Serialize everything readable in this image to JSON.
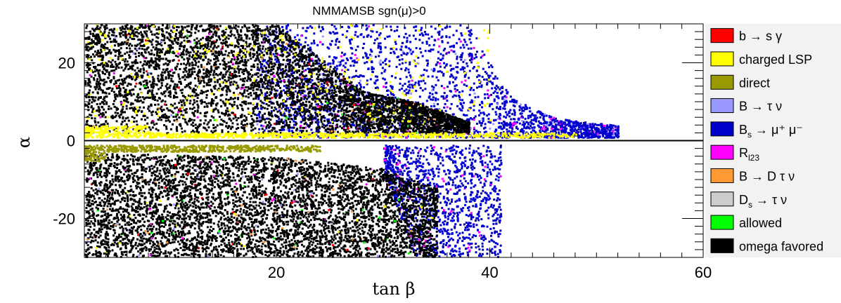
{
  "chart_data": {
    "type": "scatter",
    "title": "NMMAMSB    sgn(μ)>0",
    "xlabel": "tan β",
    "ylabel": "α",
    "xlim": [
      2,
      60
    ],
    "ylim": [
      -30,
      30
    ],
    "x_ticks": [
      20,
      40,
      60
    ],
    "y_ticks": [
      20,
      0,
      -20
    ],
    "legend_position": "right",
    "legend": [
      {
        "label": "b → s γ",
        "color": "#ff0000"
      },
      {
        "label": "charged LSP",
        "color": "#ffff00"
      },
      {
        "label": "direct",
        "color": "#999900"
      },
      {
        "label": "B → τ ν",
        "color": "#9999ff"
      },
      {
        "label": "B_s → μ⁺ μ⁻",
        "color": "#0000cc"
      },
      {
        "label": "R_l23",
        "color": "#ff00ff"
      },
      {
        "label": "B → D τ ν",
        "color": "#ff9933"
      },
      {
        "label": "D_s → τ ν",
        "color": "#cccccc"
      },
      {
        "label": "allowed",
        "color": "#00ff00"
      },
      {
        "label": "omega favored",
        "color": "#000000"
      }
    ],
    "regions": [
      {
        "name": "omega favored",
        "color": "#000000",
        "upper_boundary": [
          [
            2,
            30
          ],
          [
            20,
            30
          ],
          [
            28,
            13
          ],
          [
            33,
            10
          ],
          [
            36,
            7
          ],
          [
            40,
            3
          ]
        ],
        "lower_boundary": [
          [
            2,
            -30
          ],
          [
            34,
            -30
          ],
          [
            35,
            -25
          ],
          [
            34,
            -15
          ],
          [
            30,
            -8
          ],
          [
            20,
            -5
          ],
          [
            2,
            -3
          ]
        ]
      },
      {
        "name": "B_s → μ⁺ μ⁻",
        "color": "#0000cc",
        "upper_boundary": [
          [
            18,
            30
          ],
          [
            38,
            30
          ],
          [
            40,
            20
          ],
          [
            42,
            11
          ],
          [
            46,
            6
          ],
          [
            52,
            4
          ]
        ],
        "lower_boundary": [
          [
            33,
            -30
          ],
          [
            41,
            -30
          ],
          [
            41,
            -17
          ],
          [
            38,
            -8
          ],
          [
            33,
            -5
          ]
        ]
      },
      {
        "name": "charged LSP",
        "color": "#ffff00",
        "band": [
          [
            2,
            1
          ],
          [
            2,
            4
          ],
          [
            28,
            1.5
          ],
          [
            50,
            3.5
          ]
        ]
      },
      {
        "name": "direct",
        "color": "#999900",
        "band": [
          [
            2,
            -1
          ],
          [
            2,
            -4
          ],
          [
            20,
            -3
          ]
        ]
      }
    ]
  }
}
